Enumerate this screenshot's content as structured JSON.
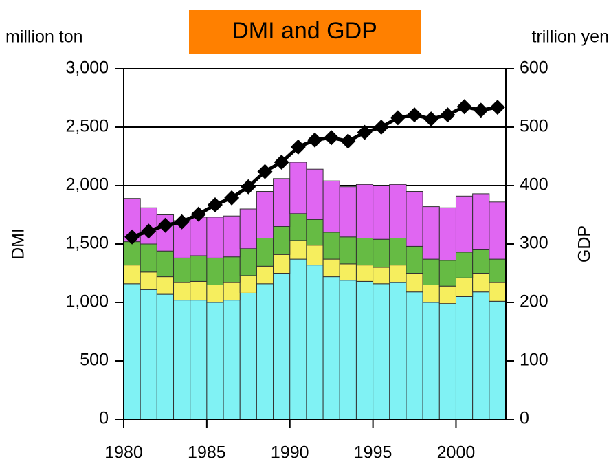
{
  "chart_data": {
    "type": "bar",
    "title": "DMI and GDP",
    "y_unit": "million ton",
    "y2_unit": "trillion yen",
    "ylabel": "DMI",
    "y2label": "GDP",
    "x": [
      1980,
      1981,
      1982,
      1983,
      1984,
      1985,
      1986,
      1987,
      1988,
      1989,
      1990,
      1991,
      1992,
      1993,
      1994,
      1995,
      1996,
      1997,
      1998,
      1999,
      2000,
      2001,
      2002
    ],
    "xlim": [
      1980,
      2003
    ],
    "xticks": [
      1980,
      1985,
      1990,
      1995,
      2000
    ],
    "ylim": [
      0,
      3000
    ],
    "yticks": [
      0,
      500,
      {
        "value": 1000,
        "label": "1,000"
      },
      {
        "value": 1500,
        "label": "1,500"
      },
      {
        "value": 2000,
        "label": "2,000"
      },
      {
        "value": 2500,
        "label": "2,500"
      },
      {
        "value": 3000,
        "label": "3,000"
      }
    ],
    "y2lim": [
      0,
      600
    ],
    "y2ticks": [
      0,
      100,
      200,
      300,
      400,
      500,
      600
    ],
    "grid": true,
    "series": [
      {
        "color": "#80f2f4",
        "values": [
          1160,
          1110,
          1070,
          1020,
          1020,
          1000,
          1020,
          1080,
          1160,
          1250,
          1370,
          1320,
          1220,
          1190,
          1180,
          1160,
          1170,
          1090,
          1000,
          990,
          1050,
          1090,
          1010
        ]
      },
      {
        "color": "#f6ee5e",
        "values": [
          160,
          150,
          150,
          150,
          160,
          150,
          150,
          150,
          150,
          160,
          160,
          170,
          150,
          140,
          140,
          140,
          150,
          160,
          150,
          150,
          160,
          160,
          160
        ]
      },
      {
        "color": "#66bb44",
        "values": [
          200,
          240,
          220,
          210,
          220,
          230,
          220,
          230,
          240,
          240,
          230,
          220,
          230,
          230,
          230,
          240,
          230,
          230,
          220,
          220,
          220,
          200,
          200
        ]
      },
      {
        "color": "#e066f2",
        "values": [
          370,
          310,
          310,
          320,
          330,
          350,
          350,
          340,
          400,
          410,
          440,
          430,
          440,
          430,
          460,
          460,
          460,
          470,
          450,
          450,
          480,
          480,
          490
        ]
      },
      {
        "type": "line",
        "axis": "y2",
        "color": "#000000",
        "values": [
          312,
          322,
          332,
          338,
          351,
          367,
          379,
          398,
          424,
          440,
          466,
          478,
          482,
          476,
          491,
          500,
          516,
          521,
          514,
          521,
          535,
          529,
          534
        ]
      }
    ]
  }
}
